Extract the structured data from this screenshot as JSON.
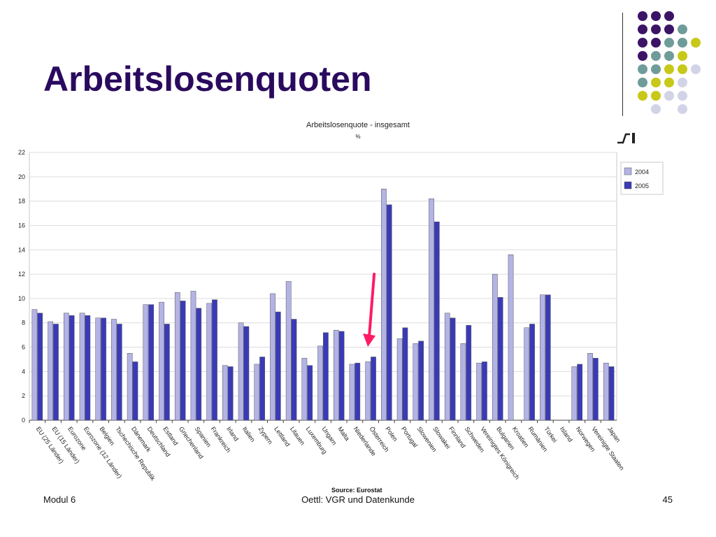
{
  "slide": {
    "title": "Arbeitslosenquoten",
    "footer_left": "Modul 6",
    "footer_center": "Oettl: VGR und Datenkunde",
    "footer_right": "45",
    "decor_colors": {
      "purple": "#3b1466",
      "teal": "#6f9c99",
      "yellow": "#c8c81a",
      "lavender": "#d3d3e8"
    }
  },
  "chart_data": {
    "type": "bar",
    "title": "Arbeitslosenquote - insgesamt",
    "subtitle": "%",
    "source": "Source: Eurostat",
    "ylim": [
      0,
      22
    ],
    "yticks": [
      0,
      2,
      4,
      6,
      8,
      10,
      12,
      14,
      16,
      18,
      20,
      22
    ],
    "grid": true,
    "legend_position": "right",
    "categories": [
      "EU (25 Länder)",
      "EU (15 Länder)",
      "Eurozone",
      "Eurozone (12 Länder)",
      "Belgien",
      "Tschechische Republik",
      "Dänemark",
      "Deutschland",
      "Estland",
      "Griechenland",
      "Spanien",
      "Frankreich",
      "Irland",
      "Italien",
      "Zypern",
      "Lettland",
      "Litauen",
      "Luxemburg",
      "Ungarn",
      "Malta",
      "Niederlande",
      "Österreich",
      "Polen",
      "Portugal",
      "Slowenien",
      "Slowakei",
      "Finnland",
      "Schweden",
      "Vereinigtes Königreich",
      "Bulgarien",
      "Kroatien",
      "Rumänien",
      "Türkei",
      "Island",
      "Norwegen",
      "Vereinigte Staaten",
      "Japan"
    ],
    "series": [
      {
        "name": "2004",
        "color": "#b3b3e6",
        "values": [
          9.1,
          8.1,
          8.8,
          8.8,
          8.4,
          8.3,
          5.5,
          9.5,
          9.7,
          10.5,
          10.6,
          9.6,
          4.5,
          8.0,
          4.6,
          10.4,
          11.4,
          5.1,
          6.1,
          7.4,
          4.6,
          4.8,
          19.0,
          6.7,
          6.3,
          18.2,
          8.8,
          6.3,
          4.7,
          12.0,
          13.6,
          7.6,
          10.3,
          null,
          4.4,
          5.5,
          4.7
        ]
      },
      {
        "name": "2005",
        "color": "#3a3ab8",
        "values": [
          8.8,
          7.9,
          8.6,
          8.6,
          8.4,
          7.9,
          4.8,
          9.5,
          7.9,
          9.8,
          9.2,
          9.9,
          4.4,
          7.7,
          5.2,
          8.9,
          8.3,
          4.5,
          7.2,
          7.3,
          4.7,
          5.2,
          17.7,
          7.6,
          6.5,
          16.3,
          8.4,
          7.8,
          4.8,
          10.1,
          null,
          7.9,
          10.3,
          null,
          4.6,
          5.1,
          4.4
        ]
      }
    ],
    "highlight_category": "Österreich",
    "highlight_color": "#ff1a66"
  }
}
